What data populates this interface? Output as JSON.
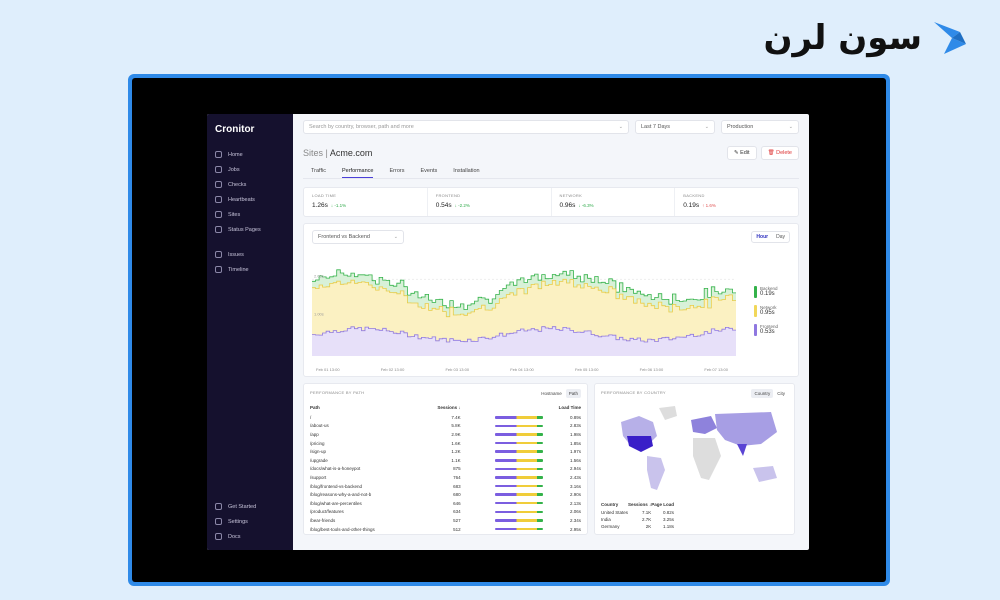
{
  "brand": {
    "text": "سون لرن"
  },
  "sidebar": {
    "logo": "Cronitor",
    "items": [
      {
        "label": "Home",
        "icon": "home-icon"
      },
      {
        "label": "Jobs",
        "icon": "jobs-icon"
      },
      {
        "label": "Checks",
        "icon": "checks-icon"
      },
      {
        "label": "Heartbeats",
        "icon": "heartbeat-icon"
      },
      {
        "label": "Sites",
        "icon": "sites-icon"
      },
      {
        "label": "Status Pages",
        "icon": "status-pages-icon"
      }
    ],
    "items2": [
      {
        "label": "Issues",
        "icon": "bell-icon"
      },
      {
        "label": "Timeline",
        "icon": "calendar-icon"
      }
    ],
    "bottom": [
      {
        "label": "Get Started",
        "icon": "rocket-icon"
      },
      {
        "label": "Settings",
        "icon": "gear-icon"
      },
      {
        "label": "Docs",
        "icon": "docs-icon"
      }
    ]
  },
  "topbar": {
    "search_placeholder": "Search by country, browser, path and more",
    "range": "Last 7 Days",
    "env": "Production"
  },
  "header": {
    "section": "Sites",
    "site": "Acme.com",
    "edit": "Edit",
    "delete": "Delete"
  },
  "tabs": [
    "Traffic",
    "Performance",
    "Errors",
    "Events",
    "Installation"
  ],
  "metrics": [
    {
      "label": "LOAD TIME",
      "value": "1.26s",
      "delta": "↓ -1.1%",
      "dir": "up"
    },
    {
      "label": "FRONTEND",
      "value": "0.54s",
      "delta": "↓ -2.2%",
      "dir": "up"
    },
    {
      "label": "NETWORK",
      "value": "0.96s",
      "delta": "↓ -6.3%",
      "dir": "up"
    },
    {
      "label": "BACKEND",
      "value": "0.19s",
      "delta": "↑ 1.6%",
      "dir": "down"
    }
  ],
  "chart": {
    "selector": "Frontend vs Backend",
    "toggle": [
      "Hour",
      "Day"
    ],
    "ylabels": [
      "2.00s",
      "1.00s"
    ],
    "xticks": [
      "Feb 01 13:00",
      "Feb 02 13:00",
      "Feb 03 13:00",
      "Feb 04 13:00",
      "Feb 05 13:00",
      "Feb 06 13:00",
      "Feb 07 13:00"
    ],
    "legend": [
      {
        "name": "Backend",
        "value": "0.19s",
        "color": "#34b24a"
      },
      {
        "name": "Network",
        "value": "0.95s",
        "color": "#f1d75a"
      },
      {
        "name": "Frontend",
        "value": "0.53s",
        "color": "#8f78e0"
      }
    ]
  },
  "paths": {
    "title": "PERFORMANCE BY PATH",
    "toggle": [
      "Hostname",
      "Path"
    ],
    "headers": [
      "Path",
      "Sessions ↓",
      "Load Time"
    ],
    "rows": [
      [
        "/",
        "7.4K",
        "0.89s"
      ],
      [
        "/about-us",
        "5.8K",
        "2.83s"
      ],
      [
        "/app",
        "2.9K",
        "1.98s"
      ],
      [
        "/pricing",
        "1.6K",
        "1.85s"
      ],
      [
        "/sign-up",
        "1.2K",
        "1.97s"
      ],
      [
        "/upgrade",
        "1.1K",
        "1.56s"
      ],
      [
        "/docs/what-is-a-honeypot",
        "875",
        "2.94s"
      ],
      [
        "/support",
        "764",
        "2.43s"
      ],
      [
        "/blog/frontend-vs-backend",
        "683",
        "3.16s"
      ],
      [
        "/blog/reasons-why-a-and-not-b",
        "680",
        "2.90s"
      ],
      [
        "/blog/what-are-percentiles",
        "646",
        "2.13s"
      ],
      [
        "/product/features",
        "634",
        "2.06s"
      ],
      [
        "/bear-friends",
        "527",
        "2.34s"
      ],
      [
        "/blog/best-tools-and-other-things",
        "512",
        "2.95s"
      ]
    ]
  },
  "countries": {
    "title": "PERFORMANCE BY COUNTRY",
    "toggle": [
      "Country",
      "City"
    ],
    "headers": [
      "Country",
      "Sessions ↓",
      "Page Load"
    ],
    "rows": [
      [
        "United States",
        "7.1K",
        "0.82s"
      ],
      [
        "India",
        "2.7K",
        "3.25s"
      ],
      [
        "Germany",
        "2K",
        "1.18s"
      ]
    ]
  }
}
